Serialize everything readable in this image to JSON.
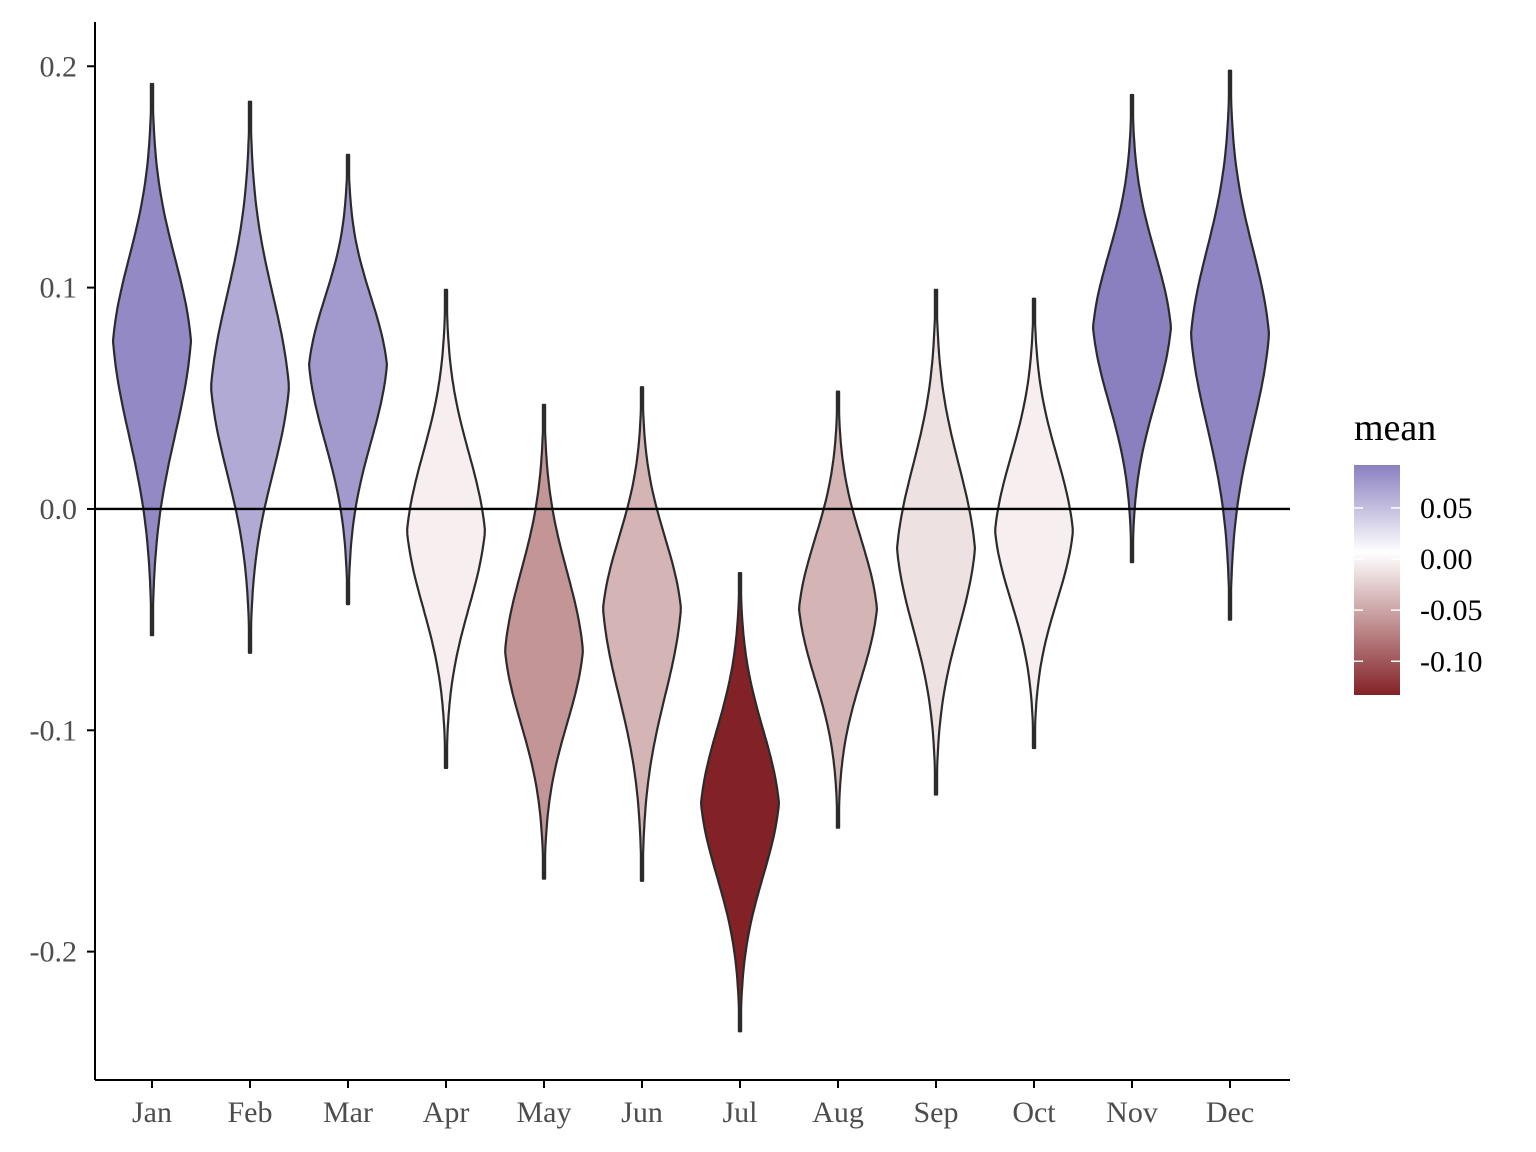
{
  "chart_data": {
    "type": "violin",
    "categories": [
      "Jan",
      "Feb",
      "Mar",
      "Apr",
      "May",
      "Jun",
      "Jul",
      "Aug",
      "Sep",
      "Oct",
      "Nov",
      "Dec"
    ],
    "series": [
      {
        "category": "Jan",
        "mean": 0.076,
        "min": -0.057,
        "max": 0.192
      },
      {
        "category": "Feb",
        "mean": 0.055,
        "min": -0.065,
        "max": 0.184
      },
      {
        "category": "Mar",
        "mean": 0.065,
        "min": -0.043,
        "max": 0.16
      },
      {
        "category": "Apr",
        "mean": -0.01,
        "min": -0.117,
        "max": 0.099
      },
      {
        "category": "May",
        "mean": -0.064,
        "min": -0.167,
        "max": 0.047
      },
      {
        "category": "Jun",
        "mean": -0.045,
        "min": -0.168,
        "max": 0.055
      },
      {
        "category": "Jul",
        "mean": -0.133,
        "min": -0.236,
        "max": -0.029
      },
      {
        "category": "Aug",
        "mean": -0.045,
        "min": -0.144,
        "max": 0.053
      },
      {
        "category": "Sep",
        "mean": -0.018,
        "min": -0.129,
        "max": 0.099
      },
      {
        "category": "Oct",
        "mean": -0.01,
        "min": -0.108,
        "max": 0.095
      },
      {
        "category": "Nov",
        "mean": 0.082,
        "min": -0.024,
        "max": 0.187
      },
      {
        "category": "Dec",
        "mean": 0.079,
        "min": -0.05,
        "max": 0.198
      }
    ],
    "ylim": [
      -0.258,
      0.22
    ],
    "yticks": [
      0.2,
      0.1,
      0.0,
      -0.1,
      -0.2
    ],
    "ytick_labels": [
      "0.2",
      "0.1",
      "0.0",
      "-0.1",
      "-0.2"
    ],
    "hline": 0.0,
    "grid": false,
    "legend": {
      "title": "mean",
      "placement": "right",
      "breaks": [
        0.05,
        0.0,
        -0.05,
        -0.1
      ],
      "labels": [
        "0.05",
        "0.00",
        "-0.05",
        "-0.10"
      ],
      "range": [
        -0.133,
        0.082
      ]
    },
    "colors": {
      "high": "#8a80c0",
      "mid": "#ffffff",
      "low": "#832226",
      "outline": "#2b2b2b",
      "axis": "#000000"
    }
  }
}
